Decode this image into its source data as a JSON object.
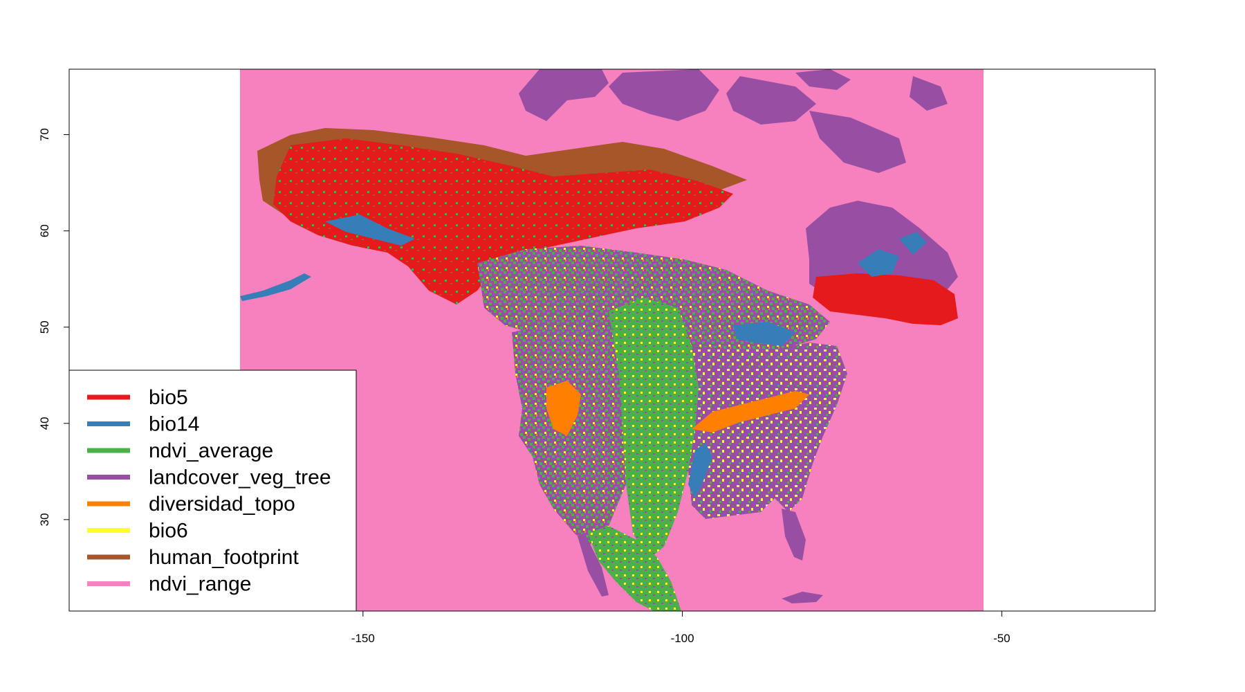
{
  "map": {
    "background_color": "#f781bf",
    "x_ticks": [
      {
        "value": -150,
        "label": "-150"
      },
      {
        "value": -100,
        "label": "-100"
      },
      {
        "value": -50,
        "label": "-50"
      }
    ],
    "y_ticks": [
      {
        "value": 30,
        "label": "30"
      },
      {
        "value": 40,
        "label": "40"
      },
      {
        "value": 50,
        "label": "50"
      },
      {
        "value": 60,
        "label": "60"
      },
      {
        "value": 70,
        "label": "70"
      }
    ],
    "xlim": [
      -196,
      -26
    ],
    "ylim": [
      20.5,
      76.8
    ],
    "raster_extent": {
      "lon": [
        -169,
        -52.5
      ],
      "lat": [
        20.5,
        76.8
      ]
    }
  },
  "legend": {
    "placement": "bottom-left",
    "items": [
      {
        "label": "bio5",
        "color": "#e41a1c"
      },
      {
        "label": "bio14",
        "color": "#377eb8"
      },
      {
        "label": "ndvi_average",
        "color": "#4daf4a"
      },
      {
        "label": "landcover_veg_tree",
        "color": "#984ea3"
      },
      {
        "label": "diversidad_topo",
        "color": "#ff7f00"
      },
      {
        "label": "bio6",
        "color": "#ffff33"
      },
      {
        "label": "human_footprint",
        "color": "#a65628"
      },
      {
        "label": "ndvi_range",
        "color": "#f781bf"
      }
    ]
  }
}
